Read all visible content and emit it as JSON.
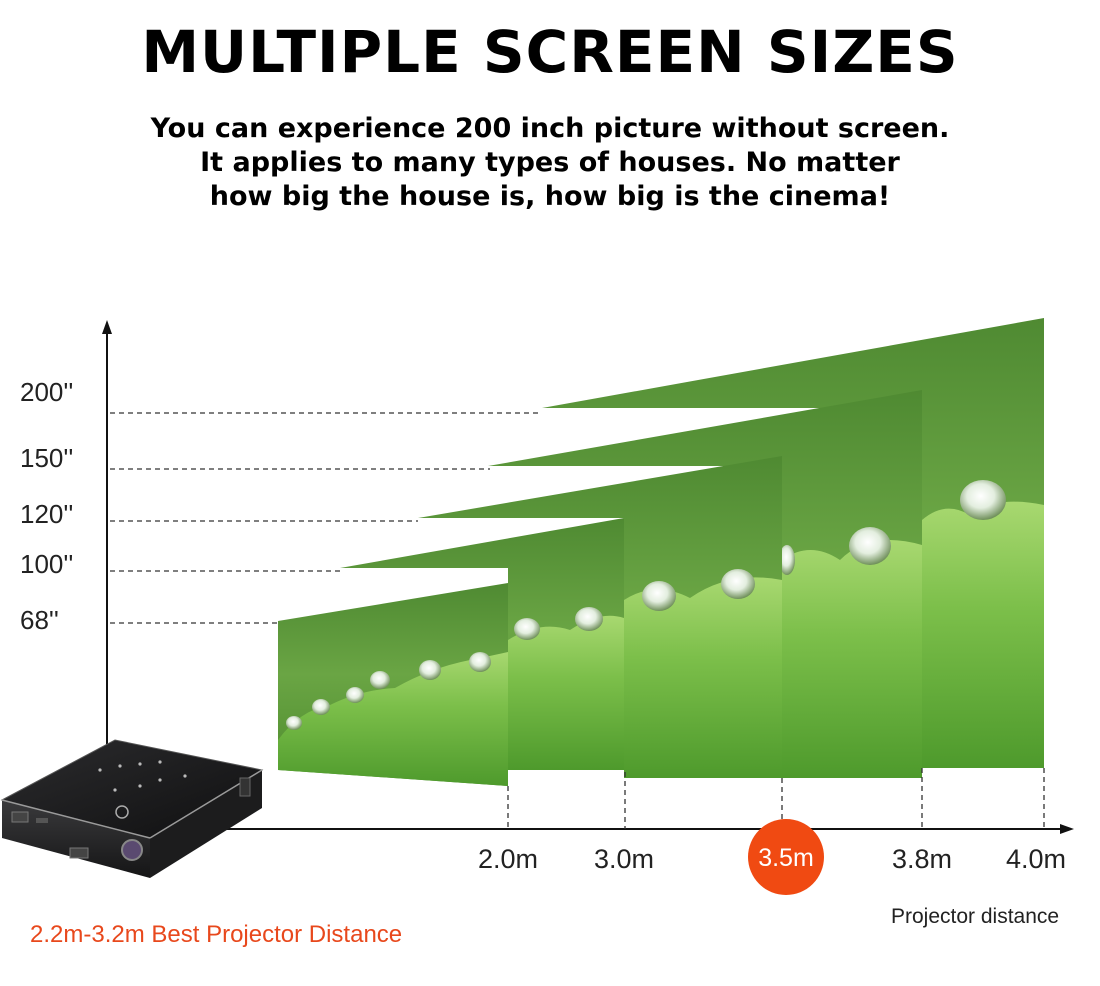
{
  "heading": "MULTIPLE SCREEN SIZES",
  "subtitle_lines": [
    "You can experience 200 inch picture without screen.",
    "It applies to many types of houses. No matter",
    "how big the house is, how big is the cinema!"
  ],
  "screen_sizes": [
    "200''",
    "150''",
    "120''",
    "100''",
    "68''"
  ],
  "distances": [
    "2.0m",
    "3.0m",
    "3.5m",
    "3.8m",
    "4.0m"
  ],
  "highlighted_distance": "3.5m",
  "x_axis_caption": "Projector distance",
  "best_distance_caption": "2.2m-3.2m Best Projector Distance",
  "colors": {
    "accent": "#f04a12",
    "caption": "#e8481c",
    "screen_green": "#5e9a3a",
    "axis": "#111111"
  },
  "icons": [
    "projector-device-icon",
    "water-drop-leaf-image"
  ]
}
